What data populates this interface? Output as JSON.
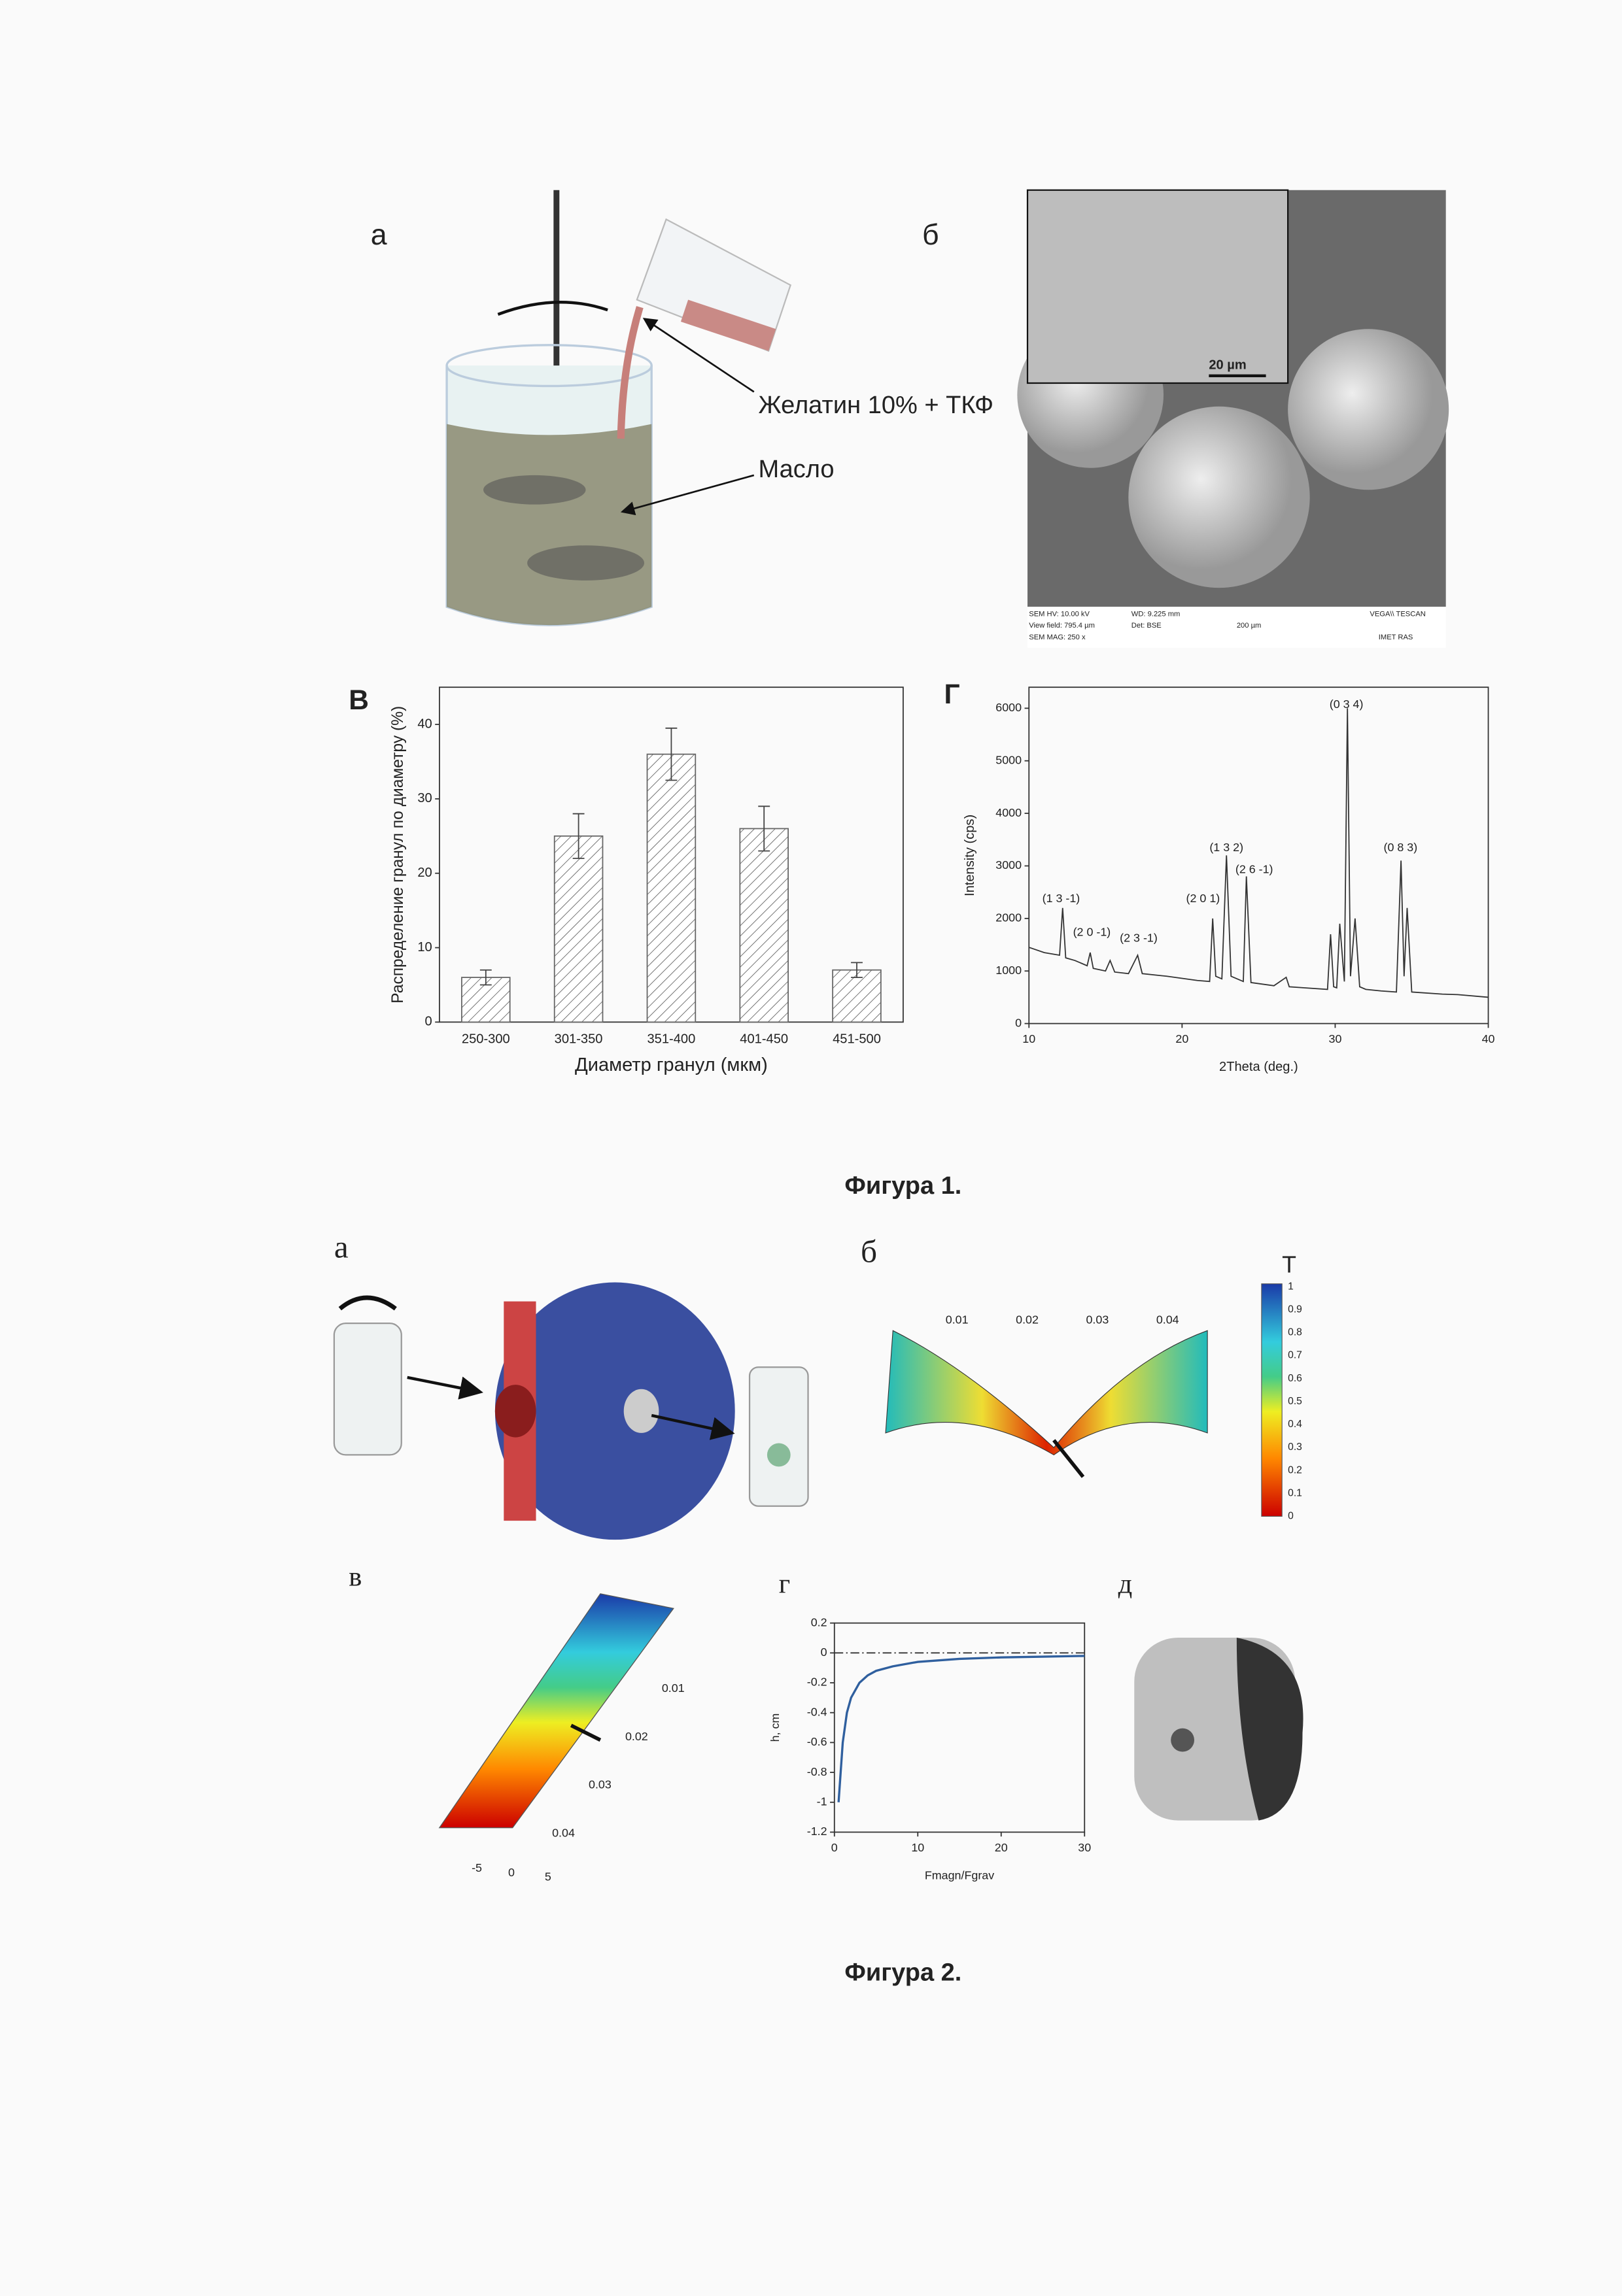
{
  "figure1": {
    "label_a": "а",
    "label_b": "б",
    "gelatin": "Желатин 10% + ТКФ",
    "oil": "Масло",
    "sem": {
      "inset_scale": "20 µm",
      "hv": "SEM HV: 10.00 kV",
      "wd": "WD: 9.225 mm",
      "brand": "VEGA\\\\ TESCAN",
      "field": "View field: 795.4 µm",
      "det": "Det: BSE",
      "scale": "200 µm",
      "mag": "SEM MAG: 250 x",
      "org": "IMET RAS"
    },
    "label_c": "В",
    "label_d": "Г",
    "caption": "Фигура 1."
  },
  "chart_data": [
    {
      "type": "bar",
      "categories": [
        "250-300",
        "301-350",
        "351-400",
        "401-450",
        "451-500"
      ],
      "values": [
        6,
        25,
        36,
        26,
        7
      ],
      "errors": [
        1,
        3,
        3.5,
        3,
        1
      ],
      "color": "#666666",
      "xlabel": "Диаметр гранул (мкм)",
      "ylabel": "Распределение гранул по диаметру (%)",
      "ylim": [
        0,
        45
      ],
      "yticks": [
        0,
        10,
        20,
        30,
        40
      ]
    },
    {
      "type": "line",
      "x": [
        10,
        11,
        12,
        12.2,
        12.4,
        13,
        13.8,
        14,
        14.2,
        15,
        15.3,
        15.6,
        16.5,
        17.1,
        17.4,
        19,
        21,
        21.8,
        22,
        22.2,
        22.6,
        22.9,
        23.2,
        23.6,
        24,
        24.2,
        24.5,
        26,
        26.8,
        27,
        28,
        29.5,
        29.7,
        29.9,
        30.1,
        30.3,
        30.6,
        30.8,
        31,
        31.3,
        31.6,
        32,
        33,
        34,
        34.3,
        34.5,
        34.7,
        35,
        37,
        38,
        40
      ],
      "values": [
        1450,
        1350,
        1300,
        2200,
        1250,
        1200,
        1100,
        1350,
        1050,
        1000,
        1200,
        980,
        950,
        1300,
        950,
        900,
        820,
        800,
        2000,
        900,
        850,
        3200,
        900,
        850,
        800,
        2800,
        780,
        720,
        880,
        700,
        680,
        650,
        1700,
        700,
        680,
        1900,
        800,
        6000,
        900,
        2000,
        700,
        650,
        620,
        600,
        3100,
        900,
        2200,
        600,
        560,
        550,
        500
      ],
      "color": "#333333",
      "xlabel": "2Theta (deg.)",
      "ylabel": "Intensity (cps)",
      "xlim": [
        10,
        40
      ],
      "xticks": [
        10,
        20,
        30,
        40
      ],
      "ylim": [
        0,
        6400
      ],
      "yticks": [
        0,
        1000,
        2000,
        3000,
        4000,
        5000,
        6000
      ],
      "annotations": [
        "(1 3 -1)",
        "(2 0 -1)",
        "(2 3 -1)",
        "(2 0 1)",
        "(1 3 2)",
        "(2 6 -1)",
        "(0 3 4)",
        "(0 8 3)"
      ]
    },
    {
      "type": "line",
      "x": [
        0.5,
        1,
        1.5,
        2,
        3,
        4,
        5,
        7,
        10,
        15,
        20,
        25,
        30
      ],
      "values": [
        -1.0,
        -0.6,
        -0.4,
        -0.3,
        -0.2,
        -0.15,
        -0.12,
        -0.09,
        -0.06,
        -0.04,
        -0.03,
        -0.025,
        -0.02
      ],
      "color": "#2f5f9e",
      "xlabel": "Fmagn/Fgrav",
      "ylabel": "h, cm",
      "xlim": [
        0,
        30
      ],
      "xticks": [
        0,
        10,
        20,
        30
      ],
      "ylim": [
        -1.2,
        0.2
      ],
      "yticks": [
        0.2,
        0,
        -0.2,
        -0.4,
        -0.6,
        -0.8,
        -1,
        -1.2
      ]
    }
  ],
  "figure2": {
    "label_a": "а",
    "label_b": "б",
    "label_c": "в",
    "label_d": "г",
    "label_e": "д",
    "temp": "T",
    "colorbar": [
      "1",
      "0.9",
      "0.8",
      "0.7",
      "0.6",
      "0.5",
      "0.4",
      "0.3",
      "0.2",
      "0.1",
      "0"
    ],
    "b_ticks": [
      "0.01",
      "0.02",
      "0.03",
      "0.04"
    ],
    "c_ticks": [
      "0.01",
      "0.02",
      "0.03",
      "0.04"
    ],
    "c_bottom": [
      "-5",
      "0",
      "5"
    ],
    "caption": "Фигура 2."
  }
}
